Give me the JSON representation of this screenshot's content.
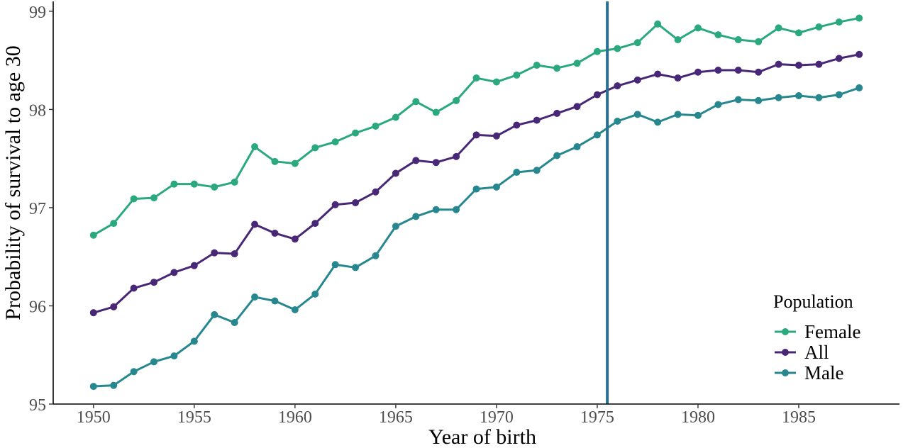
{
  "chart_data": {
    "type": "line",
    "title": "",
    "xlabel": "Year of birth",
    "ylabel": "Probability of survival to age 30",
    "xlim": [
      1948,
      1990
    ],
    "ylim": [
      95,
      99.1
    ],
    "x_ticks": [
      1950,
      1955,
      1960,
      1965,
      1970,
      1975,
      1980,
      1985
    ],
    "y_ticks": [
      95,
      96,
      97,
      98,
      99
    ],
    "grid": false,
    "vline": {
      "x": 1975.5,
      "color": "#2a6f8e"
    },
    "x": [
      1950,
      1951,
      1952,
      1953,
      1954,
      1955,
      1956,
      1957,
      1958,
      1959,
      1960,
      1961,
      1962,
      1963,
      1964,
      1965,
      1966,
      1967,
      1968,
      1969,
      1970,
      1971,
      1972,
      1973,
      1974,
      1975,
      1976,
      1977,
      1978,
      1979,
      1980,
      1981,
      1982,
      1983,
      1984,
      1985,
      1986,
      1987,
      1988
    ],
    "series": [
      {
        "name": "Female",
        "color": "#2aa87e",
        "values": [
          96.72,
          96.84,
          97.09,
          97.1,
          97.24,
          97.24,
          97.21,
          97.26,
          97.62,
          97.47,
          97.45,
          97.61,
          97.67,
          97.76,
          97.83,
          97.92,
          98.08,
          97.97,
          98.09,
          98.32,
          98.28,
          98.35,
          98.45,
          98.42,
          98.47,
          98.59,
          98.62,
          98.68,
          98.87,
          98.71,
          98.83,
          98.76,
          98.71,
          98.69,
          98.83,
          98.78,
          98.84,
          98.89,
          98.93
        ]
      },
      {
        "name": "All",
        "color": "#482876",
        "values": [
          95.93,
          95.99,
          96.18,
          96.24,
          96.34,
          96.41,
          96.54,
          96.53,
          96.83,
          96.74,
          96.68,
          96.84,
          97.03,
          97.05,
          97.16,
          97.35,
          97.48,
          97.46,
          97.52,
          97.74,
          97.73,
          97.84,
          97.89,
          97.96,
          98.03,
          98.15,
          98.24,
          98.3,
          98.36,
          98.32,
          98.38,
          98.4,
          98.4,
          98.38,
          98.46,
          98.45,
          98.46,
          98.52,
          98.56
        ]
      },
      {
        "name": "Male",
        "color": "#26878e",
        "values": [
          95.18,
          95.19,
          95.33,
          95.43,
          95.49,
          95.64,
          95.91,
          95.83,
          96.09,
          96.05,
          95.96,
          96.12,
          96.42,
          96.39,
          96.51,
          96.81,
          96.91,
          96.98,
          96.98,
          97.19,
          97.21,
          97.36,
          97.38,
          97.53,
          97.62,
          97.74,
          97.88,
          97.95,
          97.87,
          97.95,
          97.94,
          98.05,
          98.1,
          98.09,
          98.12,
          98.14,
          98.12,
          98.15,
          98.22
        ]
      }
    ],
    "legend": {
      "title": "Population",
      "placement": "bottom-right",
      "order": [
        "Female",
        "All",
        "Male"
      ]
    }
  }
}
